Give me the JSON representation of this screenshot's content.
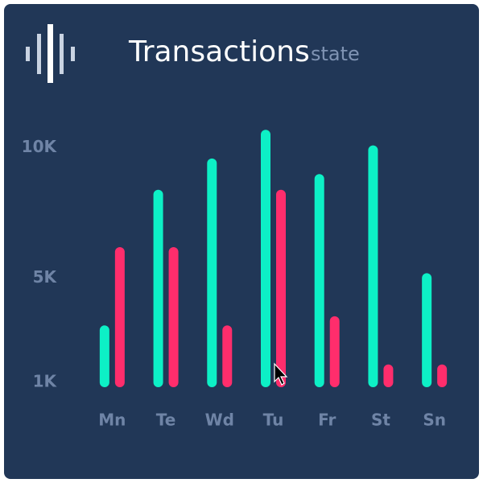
{
  "chart_data": {
    "type": "bar",
    "title": "Transactions",
    "subtitle": "state",
    "categories": [
      "Mn",
      "Te",
      "Wd",
      "Tu",
      "Fr",
      "St",
      "Sn"
    ],
    "series": [
      {
        "color": "#0df0c6",
        "values": [
          3000,
          8200,
          9400,
          10500,
          8800,
          9900,
          5000
        ]
      },
      {
        "color": "#ff2d6c",
        "values": [
          6000,
          6000,
          3000,
          8200,
          3350,
          1500,
          1500
        ]
      }
    ],
    "ylim": [
      1000,
      11000
    ],
    "yticks": [
      {
        "value": 1000,
        "label": "1K"
      },
      {
        "value": 5000,
        "label": "5K"
      },
      {
        "value": 10000,
        "label": "10K"
      }
    ],
    "grid": false
  }
}
